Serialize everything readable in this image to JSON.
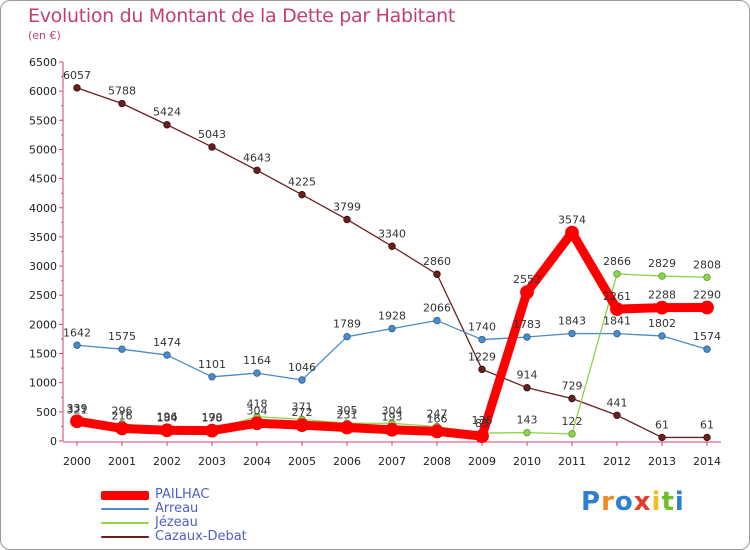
{
  "header": {
    "title": "Evolution du Montant de la Dette par Habitant",
    "subtitle": "(en €)"
  },
  "logo": {
    "text": "Proxiti",
    "letters": [
      {
        "char": "P",
        "color": "#2f7fd0"
      },
      {
        "char": "r",
        "color": "#f08a1e"
      },
      {
        "char": "o",
        "color": "#2f7fd0"
      },
      {
        "char": "x",
        "color": "#e83c2a"
      },
      {
        "char": "i",
        "color": "#f0c020"
      },
      {
        "char": "t",
        "color": "#6fbf2a"
      },
      {
        "char": "i",
        "color": "#2f7fd0"
      }
    ]
  },
  "chart_data": {
    "type": "line",
    "title": "Evolution du Montant de la Dette par Habitant",
    "subtitle": "(en €)",
    "xlabel": "",
    "ylabel": "",
    "x": [
      "2000",
      "2001",
      "2002",
      "2003",
      "2004",
      "2005",
      "2006",
      "2007",
      "2008",
      "2009",
      "2010",
      "2011",
      "2012",
      "2013",
      "2014"
    ],
    "ylim": [
      0,
      6500
    ],
    "yticks": [
      0,
      500,
      1000,
      1500,
      2000,
      2500,
      3000,
      3500,
      4000,
      4500,
      5000,
      5500,
      6000,
      6500
    ],
    "grid": false,
    "legend_position": "bottom-left",
    "series": [
      {
        "name": "PAILHAC",
        "color": "#ff0000",
        "values": [
          339,
          216,
          184,
          178,
          304,
          272,
          231,
          193,
          166,
          83,
          2552,
          3574,
          2261,
          2288,
          2290
        ],
        "labels": [
          "339",
          "216",
          "184",
          "178",
          "304",
          "272",
          "231",
          "193",
          "166",
          "83",
          "2552",
          "3574",
          "2261",
          "2288",
          "2290"
        ]
      },
      {
        "name": "Arreau",
        "color": "#4a8cc8",
        "values": [
          1642,
          1575,
          1474,
          1101,
          1164,
          1046,
          1789,
          1928,
          2066,
          1740,
          1783,
          1843,
          1841,
          1802,
          1574
        ],
        "labels": [
          "1642",
          "1575",
          "1474",
          "1101",
          "1164",
          "1046",
          "1789",
          "1928",
          "2066",
          "1740",
          "1783",
          "1843",
          "1841",
          "1802",
          "1574"
        ]
      },
      {
        "name": "Jézeau",
        "color": "#8ed44a",
        "values": [
          321,
          296,
          196,
          190,
          418,
          371,
          305,
          304,
          247,
          136,
          143,
          122,
          2866,
          2829,
          2808
        ],
        "labels": [
          "321",
          "296",
          "196",
          "190",
          "418",
          "371",
          "305",
          "304",
          "247",
          "136",
          "143",
          "122",
          "2866",
          "2829",
          "2808"
        ]
      },
      {
        "name": "Cazaux-Debat",
        "color": "#6b1e1e",
        "values": [
          6057,
          5788,
          5424,
          5043,
          4643,
          4225,
          3799,
          3340,
          2860,
          1229,
          914,
          729,
          441,
          61,
          61
        ],
        "labels": [
          "6057",
          "5788",
          "5424",
          "5043",
          "4643",
          "4225",
          "3799",
          "3340",
          "2860",
          "1229",
          "914",
          "729",
          "441",
          "61",
          "61"
        ]
      }
    ]
  }
}
